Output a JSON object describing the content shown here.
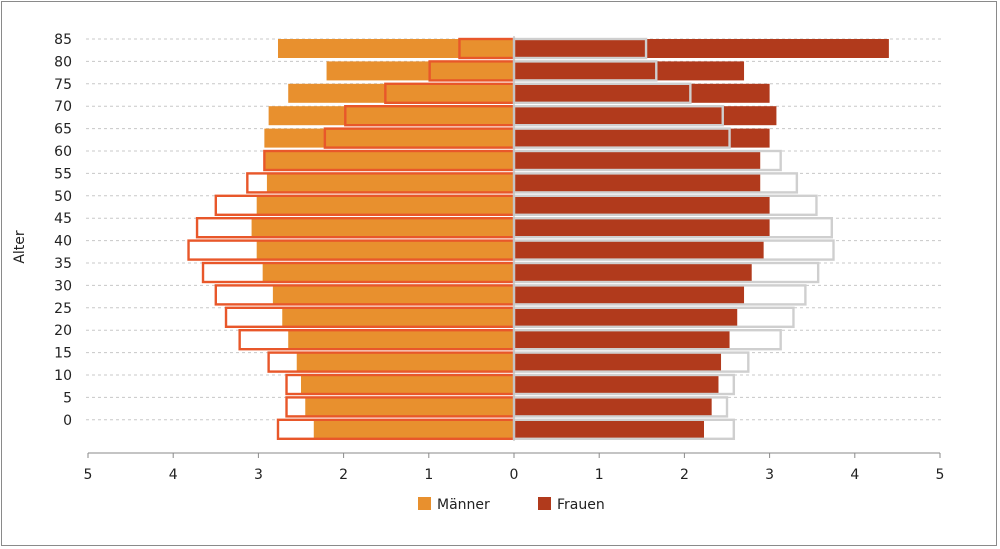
{
  "chart_data": {
    "type": "bar",
    "subtype": "population-pyramid",
    "title": "",
    "ylabel": "Alter",
    "xlabel": "",
    "xlim": [
      -5,
      5
    ],
    "x_tick_labels": [
      "5",
      "4",
      "3",
      "2",
      "1",
      "0",
      "1",
      "2",
      "3",
      "4",
      "5"
    ],
    "age_groups": [
      "0",
      "5",
      "10",
      "15",
      "20",
      "25",
      "30",
      "35",
      "40",
      "45",
      "50",
      "55",
      "60",
      "65",
      "70",
      "75",
      "80",
      "85"
    ],
    "age_tick_labels": [
      "0",
      "5",
      "10",
      "15",
      "20",
      "25",
      "30",
      "35",
      "40",
      "45",
      "50",
      "55",
      "60",
      "65",
      "70",
      "75",
      "80",
      "85"
    ],
    "grid": true,
    "legend_position": "bottom-center",
    "series": [
      {
        "name": "Männer",
        "side": "left",
        "style": "filled",
        "color": "#e8902e",
        "values": [
          2.35,
          2.45,
          2.5,
          2.55,
          2.65,
          2.72,
          2.83,
          2.95,
          3.02,
          3.08,
          3.02,
          2.9,
          2.93,
          2.93,
          2.88,
          2.65,
          2.2,
          2.77
        ]
      },
      {
        "name": "Frauen",
        "side": "right",
        "style": "filled",
        "color": "#b13a1c",
        "values": [
          2.23,
          2.32,
          2.4,
          2.43,
          2.53,
          2.62,
          2.7,
          2.79,
          2.93,
          3.0,
          3.0,
          2.89,
          2.89,
          3.0,
          3.08,
          3.0,
          2.7,
          4.4
        ]
      },
      {
        "name": "",
        "side": "left",
        "style": "outline",
        "color": "#e8572a",
        "values": [
          2.77,
          2.67,
          2.67,
          2.88,
          3.22,
          3.38,
          3.5,
          3.65,
          3.82,
          3.72,
          3.5,
          3.13,
          2.93,
          2.22,
          1.98,
          1.51,
          0.99,
          0.64
        ]
      },
      {
        "name": "",
        "side": "right",
        "style": "outline",
        "color": "#cfcfcf",
        "values": [
          2.58,
          2.5,
          2.58,
          2.75,
          3.13,
          3.28,
          3.42,
          3.57,
          3.75,
          3.73,
          3.55,
          3.32,
          3.13,
          2.53,
          2.45,
          2.07,
          1.67,
          1.55
        ]
      }
    ],
    "legend": [
      {
        "label": "Männer",
        "color": "#e8902e"
      },
      {
        "label": "Frauen",
        "color": "#b13a1c"
      }
    ]
  }
}
